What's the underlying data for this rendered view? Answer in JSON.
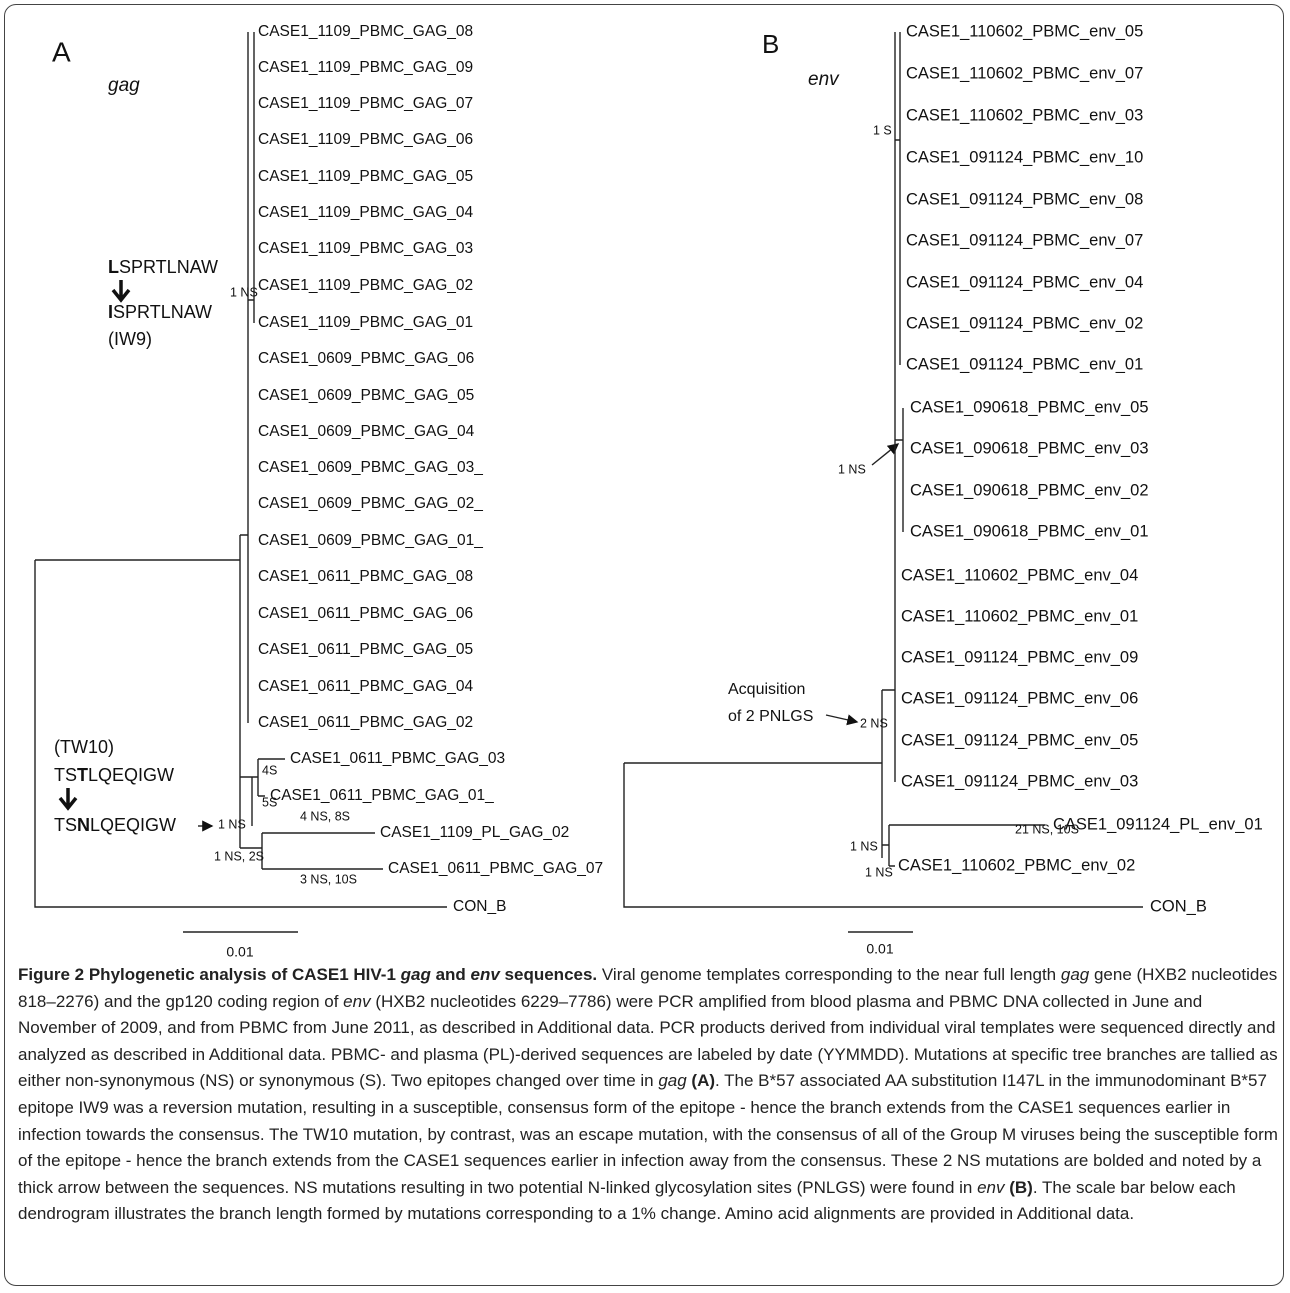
{
  "panel_a": {
    "label": "A",
    "gene": "gag",
    "leaves": [
      "CASE1_1109_PBMC_GAG_08",
      "CASE1_1109_PBMC_GAG_09",
      "CASE1_1109_PBMC_GAG_07",
      "CASE1_1109_PBMC_GAG_06",
      "CASE1_1109_PBMC_GAG_05",
      "CASE1_1109_PBMC_GAG_04",
      "CASE1_1109_PBMC_GAG_03",
      "CASE1_1109_PBMC_GAG_02",
      "CASE1_1109_PBMC_GAG_01",
      "CASE1_0609_PBMC_GAG_06",
      "CASE1_0609_PBMC_GAG_05",
      "CASE1_0609_PBMC_GAG_04",
      "CASE1_0609_PBMC_GAG_03_",
      "CASE1_0609_PBMC_GAG_02_",
      "CASE1_0609_PBMC_GAG_01_",
      "CASE1_0611_PBMC_GAG_08",
      "CASE1_0611_PBMC_GAG_06",
      "CASE1_0611_PBMC_GAG_05",
      "CASE1_0611_PBMC_GAG_04",
      "CASE1_0611_PBMC_GAG_02",
      "CASE1_0611_PBMC_GAG_03",
      "CASE1_0611_PBMC_GAG_01_",
      "CASE1_1109_PL_GAG_02",
      "CASE1_0611_PBMC_GAG_07"
    ],
    "outgroup": "CON_B",
    "branch_labels": [
      "1 NS",
      "4S",
      "5S",
      "1 NS",
      "1 NS, 2S",
      "4 NS, 8S",
      "3 NS, 10S"
    ],
    "epitopes": {
      "iw9_from": [
        "L",
        "SPRTLNAW"
      ],
      "iw9_to": [
        "I",
        "SPRTLNAW"
      ],
      "iw9_name": "(IW9)",
      "tw10_name": "(TW10)",
      "tw10_from": [
        "TS",
        "T",
        "LQEQIGW"
      ],
      "tw10_to": [
        "TS",
        "N",
        "LQEQIGW"
      ]
    },
    "scale_label": "0.01"
  },
  "panel_b": {
    "label": "B",
    "gene": "env",
    "leaves": [
      "CASE1_110602_PBMC_env_05",
      "CASE1_110602_PBMC_env_07",
      "CASE1_110602_PBMC_env_03",
      "CASE1_091124_PBMC_env_10",
      "CASE1_091124_PBMC_env_08",
      "CASE1_091124_PBMC_env_07",
      "CASE1_091124_PBMC_env_04",
      "CASE1_091124_PBMC_env_02",
      "CASE1_091124_PBMC_env_01",
      "CASE1_090618_PBMC_env_05",
      "CASE1_090618_PBMC_env_03",
      "CASE1_090618_PBMC_env_02",
      "CASE1_090618_PBMC_env_01",
      "CASE1_110602_PBMC_env_04",
      "CASE1_110602_PBMC_env_01",
      "CASE1_091124_PBMC_env_09",
      "CASE1_091124_PBMC_env_06",
      "CASE1_091124_PBMC_env_05",
      "CASE1_091124_PBMC_env_03",
      "CASE1_091124_PL_env_01",
      "CASE1_110602_PBMC_env_02"
    ],
    "outgroup": "CON_B",
    "branch_labels": [
      "1 S",
      "1 NS",
      "2 NS",
      "21 NS, 10S",
      "1 NS",
      "1 NS"
    ],
    "acquisition": [
      "Acquisition",
      "of 2 PNLGS"
    ],
    "scale_label": "0.01"
  },
  "caption": {
    "runs": [
      {
        "text": "Figure 2 Phylogenetic analysis of CASE1 HIV-1 ",
        "style": "b"
      },
      {
        "text": "gag",
        "style": "bi"
      },
      {
        "text": " and ",
        "style": "b"
      },
      {
        "text": "env",
        "style": "bi"
      },
      {
        "text": " sequences.",
        "style": "b"
      },
      {
        "text": " Viral genome templates corresponding to the near full length "
      },
      {
        "text": "gag",
        "style": "i"
      },
      {
        "text": " gene (HXB2 nucleotides 818–2276) and the gp120 coding region of "
      },
      {
        "text": "env",
        "style": "i"
      },
      {
        "text": " (HXB2 nucleotides 6229–7786) were PCR amplified from blood plasma and PBMC DNA collected in June and November of 2009, and from PBMC from June 2011, as described in Additional data. PCR products derived from individual viral templates were sequenced directly and analyzed as described in Additional data. PBMC- and plasma (PL)-derived sequences are labeled by date (YYMMDD). Mutations at specific tree branches are tallied as either non-synonymous (NS) or synonymous (S). Two epitopes changed over time in "
      },
      {
        "text": "gag",
        "style": "i"
      },
      {
        "text": " (A)",
        "style": "b"
      },
      {
        "text": ". The B*57 associated AA substitution I147L in the immunodominant B*57 epitope IW9 was a reversion mutation, resulting in a susceptible, consensus form of the epitope - hence the branch extends from the CASE1 sequences earlier in infection towards the consensus. The TW10 mutation, by contrast, was an escape mutation, with the consensus of all of the Group M viruses being the susceptible form of the epitope - hence the branch extends from the CASE1 sequences earlier in infection away from the consensus. These 2 NS mutations are bolded and noted by a thick arrow between the sequences. NS mutations resulting in two potential N-linked glycosylation sites (PNLGS) were found in "
      },
      {
        "text": "env",
        "style": "i"
      },
      {
        "text": " (B)",
        "style": "b"
      },
      {
        "text": ". The scale bar below each dendrogram illustrates the branch length formed by mutations corresponding to a 1% change. Amino acid alignments are provided in Additional data."
      }
    ]
  }
}
